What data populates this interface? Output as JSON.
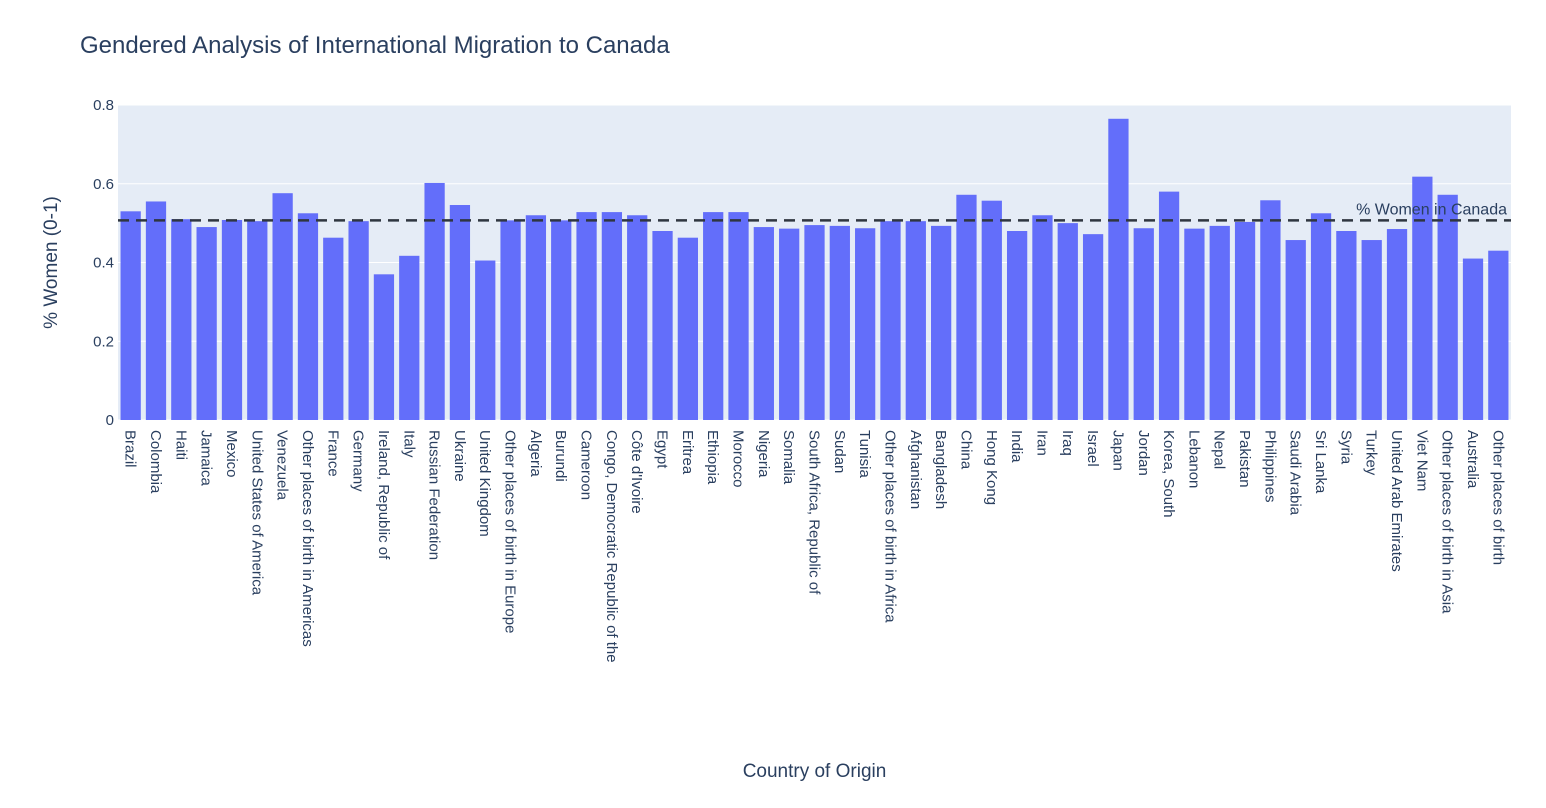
{
  "chart_data": {
    "type": "bar",
    "title": "Gendered Analysis of International Migration to Canada",
    "xlabel": "Country of Origin",
    "ylabel": "% Women (0-1)",
    "ylim": [
      0,
      0.8
    ],
    "yticks": [
      0,
      0.2,
      0.4,
      0.6,
      0.8
    ],
    "ytick_labels": [
      "0",
      "0.2",
      "0.4",
      "0.6",
      "0.8"
    ],
    "grid": true,
    "bar_color": "#636efa",
    "plot_bg": "#e5ecf6",
    "categories": [
      "Brazil",
      "Colombia",
      "Haiti",
      "Jamaica",
      "Mexico",
      "United States of America",
      "Venezuela",
      "Other places of birth in Americas",
      "France",
      "Germany",
      "Ireland, Republic of",
      "Italy",
      "Russian Federation",
      "Ukraine",
      "United Kingdom",
      "Other places of birth in Europe",
      "Algeria",
      "Burundi",
      "Cameroon",
      "Congo, Democratic Republic of the",
      "Côte d'Ivoire",
      "Egypt",
      "Eritrea",
      "Ethiopia",
      "Morocco",
      "Nigeria",
      "Somalia",
      "South Africa, Republic of",
      "Sudan",
      "Tunisia",
      "Other places of birth in Africa",
      "Afghanistan",
      "Bangladesh",
      "China",
      "Hong Kong",
      "India",
      "Iran",
      "Iraq",
      "Israel",
      "Japan",
      "Jordan",
      "Korea, South",
      "Lebanon",
      "Nepal",
      "Pakistan",
      "Philippines",
      "Saudi Arabia",
      "Sri Lanka",
      "Syria",
      "Turkey",
      "United Arab Emirates",
      "Viet Nam",
      "Other places of birth in Asia",
      "Australia",
      "Other places of birth"
    ],
    "values": [
      0.53,
      0.555,
      0.51,
      0.49,
      0.508,
      0.505,
      0.576,
      0.525,
      0.463,
      0.505,
      0.37,
      0.417,
      0.602,
      0.546,
      0.405,
      0.507,
      0.52,
      0.507,
      0.528,
      0.528,
      0.52,
      0.48,
      0.463,
      0.528,
      0.528,
      0.49,
      0.486,
      0.495,
      0.493,
      0.487,
      0.505,
      0.505,
      0.493,
      0.572,
      0.557,
      0.48,
      0.52,
      0.5,
      0.472,
      0.765,
      0.487,
      0.58,
      0.486,
      0.493,
      0.503,
      0.558,
      0.457,
      0.525,
      0.48,
      0.457,
      0.485,
      0.618,
      0.572,
      0.41,
      0.43
    ],
    "reference_line": {
      "value": 0.507,
      "label": "% Women in Canada",
      "style": "dashed",
      "color": "#2f3640"
    }
  }
}
